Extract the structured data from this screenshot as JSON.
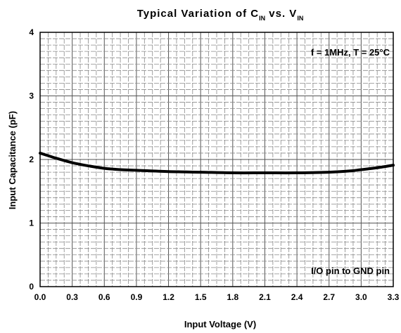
{
  "chart_data": {
    "type": "line",
    "title": {
      "prefix": "Typical Variation of C",
      "sub1": "IN",
      "middle": " vs. V",
      "sub2": "IN"
    },
    "xlabel": "Input Voltage (V)",
    "ylabel": "Input Capacitance (pF)",
    "xlim": [
      0,
      3.3
    ],
    "ylim": [
      0,
      4
    ],
    "x_ticks": [
      "0.0",
      "0.3",
      "0.6",
      "0.9",
      "1.2",
      "1.5",
      "1.8",
      "2.1",
      "2.4",
      "2.7",
      "3.0",
      "3.3"
    ],
    "y_ticks": [
      "0",
      "1",
      "2",
      "3",
      "4"
    ],
    "grid": true,
    "annotations": {
      "conditions": "f = 1MHz, T = 25°C",
      "note": "I/O pin to GND pin"
    },
    "series": [
      {
        "color": "#000000",
        "x": [
          0.0,
          0.15,
          0.3,
          0.45,
          0.6,
          0.75,
          0.9,
          1.2,
          1.5,
          1.8,
          2.1,
          2.4,
          2.7,
          2.9,
          3.0,
          3.15,
          3.3
        ],
        "y": [
          2.1,
          2.02,
          1.95,
          1.9,
          1.86,
          1.84,
          1.83,
          1.81,
          1.8,
          1.79,
          1.79,
          1.79,
          1.8,
          1.82,
          1.84,
          1.87,
          1.91
        ]
      }
    ]
  }
}
